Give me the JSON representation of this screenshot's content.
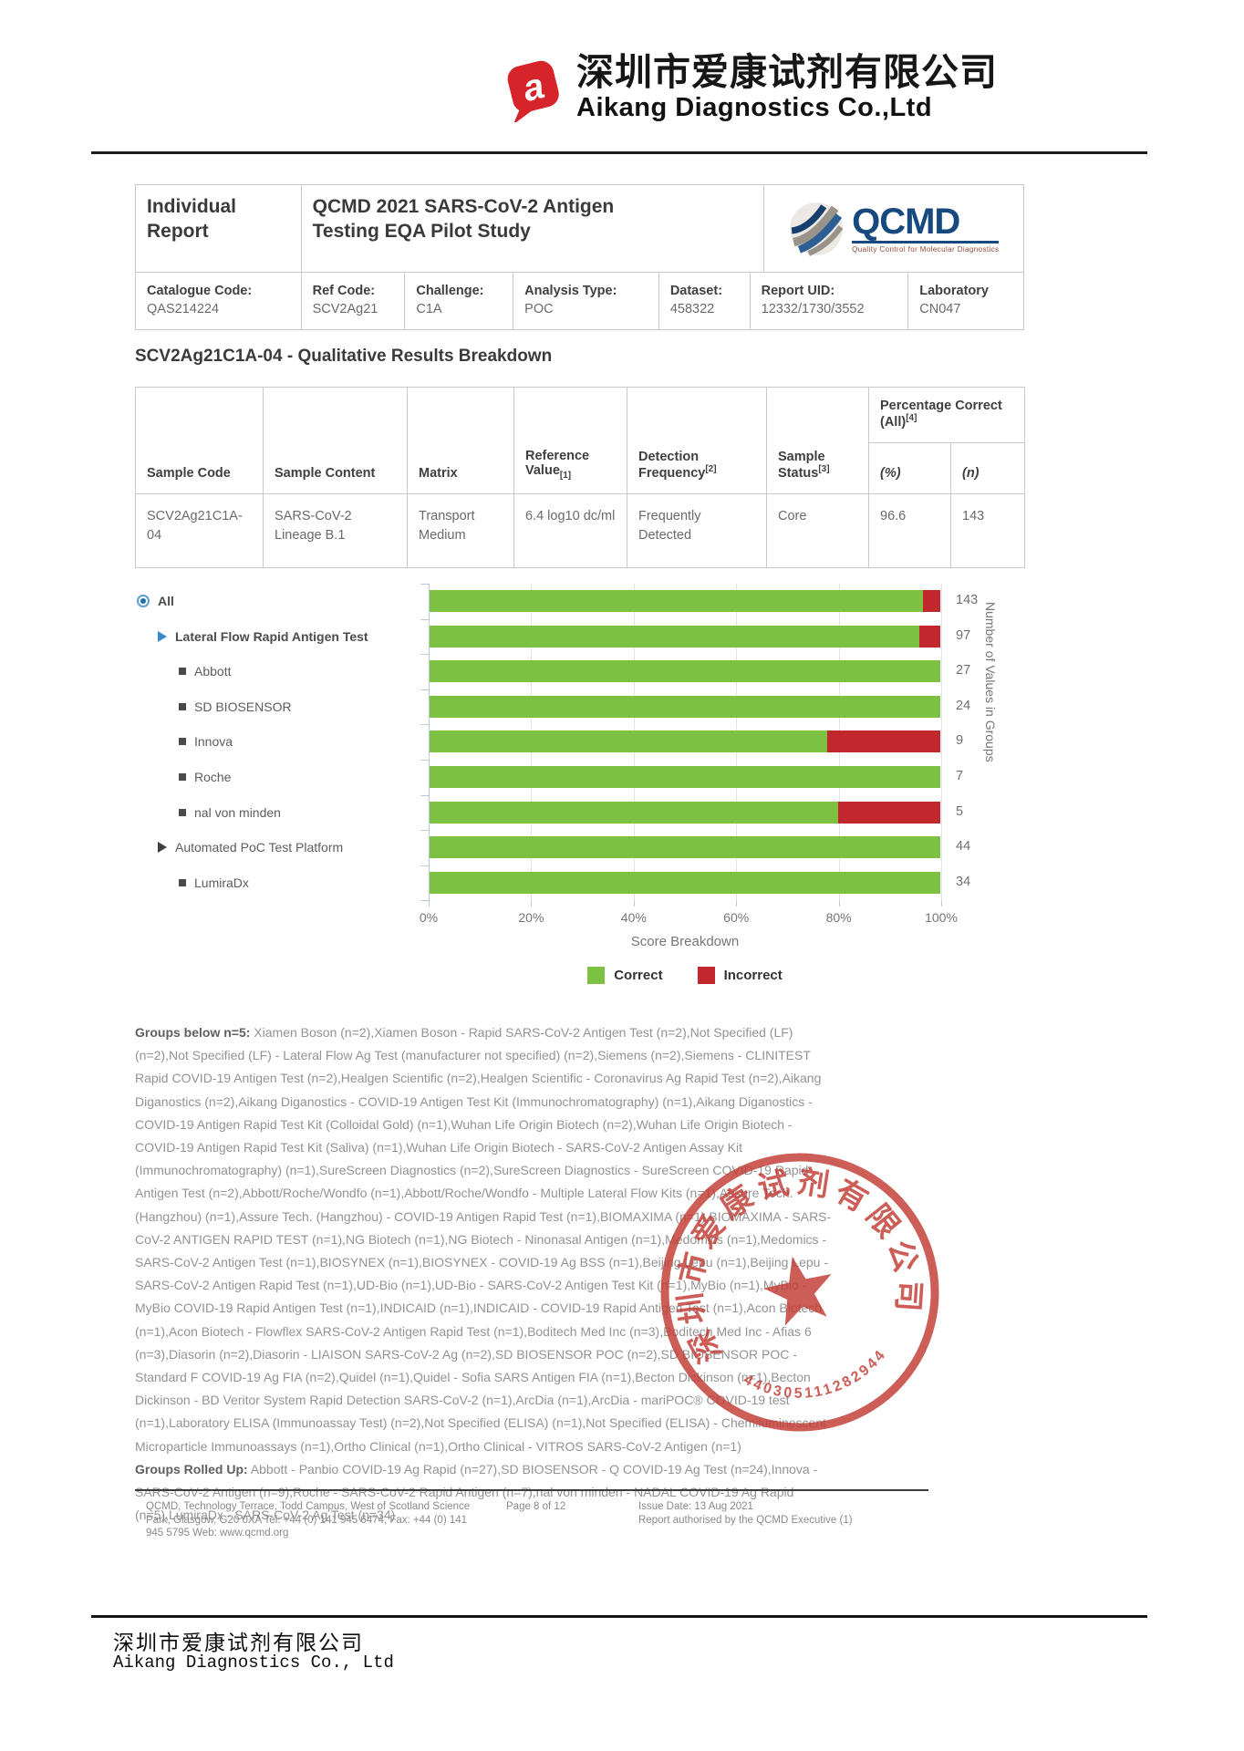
{
  "letterhead": {
    "company_cn": "深圳市爱康试剂有限公司",
    "company_en": "Aikang Diagnostics Co.,Ltd",
    "logo_letter": "a",
    "logo_color": "#d7232a"
  },
  "report_header": {
    "report_type": "Individual Report",
    "study_title": "QCMD 2021 SARS-CoV-2 Antigen Testing EQA Pilot Study",
    "qcmd": {
      "name": "QCMD",
      "tagline": "Quality Control for Molecular Diagnostics"
    },
    "fields": [
      {
        "label": "Catalogue Code:",
        "value": "QAS214224"
      },
      {
        "label": "Ref Code:",
        "value": "SCV2Ag21"
      },
      {
        "label": "Challenge:",
        "value": "C1A"
      },
      {
        "label": "Analysis Type:",
        "value": "POC"
      },
      {
        "label": "Dataset:",
        "value": "458322"
      },
      {
        "label": "Report UID:",
        "value": "12332/1730/3552"
      },
      {
        "label": "Laboratory",
        "value": "CN047"
      }
    ]
  },
  "section_title": "SCV2Ag21C1A-04 - Qualitative Results Breakdown",
  "results_table": {
    "columns": [
      {
        "label": "Sample Code",
        "note": ""
      },
      {
        "label": "Sample Content",
        "note": ""
      },
      {
        "label": "Matrix",
        "note": ""
      },
      {
        "label": "Reference Value",
        "note": "[1]"
      },
      {
        "label": "Detection Frequency",
        "note": "[2]"
      },
      {
        "label": "Sample Status",
        "note": "[3]"
      }
    ],
    "pct_group": {
      "label": "Percentage Correct (All)",
      "note": "[4]",
      "sub_columns": [
        "(%)",
        "(n)"
      ]
    },
    "row": {
      "sample_code": "SCV2Ag21C1A-04",
      "sample_content": "SARS-CoV-2 Lineage B.1",
      "matrix": "Transport Medium",
      "reference_value": "6.4 log10 dc/ml",
      "detection_frequency": "Frequently Detected",
      "sample_status": "Core",
      "pct": "96.6",
      "n": "143"
    }
  },
  "chart_data": {
    "type": "bar",
    "orientation": "horizontal",
    "stacked": true,
    "xlabel": "Score Breakdown",
    "right_axis_label": "Number of Values in Groups",
    "x_ticks": [
      "0%",
      "20%",
      "40%",
      "60%",
      "80%",
      "100%"
    ],
    "xlim": [
      0,
      100
    ],
    "grid": true,
    "legend": [
      {
        "name": "Correct",
        "color": "#7cc142"
      },
      {
        "name": "Incorrect",
        "color": "#c1272d"
      }
    ],
    "categories": [
      "All",
      "Lateral Flow Rapid Antigen Test",
      "Abbott",
      "SD BIOSENSOR",
      "Innova",
      "Roche",
      "nal von minden",
      "Automated PoC Test Platform",
      "LumiraDx"
    ],
    "counts": [
      143,
      97,
      27,
      24,
      9,
      7,
      5,
      44,
      34
    ],
    "series": [
      {
        "name": "Correct",
        "values_pct": [
          96.6,
          95.9,
          100,
          100,
          77.8,
          100,
          80,
          100,
          100
        ]
      },
      {
        "name": "Incorrect",
        "values_pct": [
          3.4,
          4.1,
          0,
          0,
          22.2,
          0,
          20,
          0,
          0
        ]
      }
    ],
    "row_meta": [
      {
        "marker": "radio",
        "indent": 0,
        "bold": true
      },
      {
        "marker": "triangle-blue",
        "indent": 1,
        "bold": true
      },
      {
        "marker": "square",
        "indent": 2,
        "bold": false
      },
      {
        "marker": "square",
        "indent": 2,
        "bold": false
      },
      {
        "marker": "square",
        "indent": 2,
        "bold": false
      },
      {
        "marker": "square",
        "indent": 2,
        "bold": false
      },
      {
        "marker": "square",
        "indent": 2,
        "bold": false
      },
      {
        "marker": "triangle-dark",
        "indent": 1,
        "bold": false
      },
      {
        "marker": "square",
        "indent": 2,
        "bold": false
      }
    ]
  },
  "notes": {
    "below_n5_label": "Groups below n=5:",
    "below_n5_text": " Xiamen Boson (n=2),Xiamen Boson - Rapid SARS-CoV-2 Antigen Test (n=2),Not Specified (LF) (n=2),Not Specified (LF) - Lateral Flow Ag Test (manufacturer not specified) (n=2),Siemens (n=2),Siemens - CLINITEST Rapid COVID-19 Antigen Test (n=2),Healgen Scientific (n=2),Healgen Scientific - Coronavirus Ag Rapid Test (n=2),Aikang Diganostics (n=2),Aikang Diganostics - COVID-19 Antigen Test Kit (Immunochromatography) (n=1),Aikang Diganostics - COVID-19 Antigen Rapid Test Kit (Colloidal Gold) (n=1),Wuhan Life Origin Biotech (n=2),Wuhan Life Origin Biotech - COVID-19 Antigen Rapid Test Kit (Saliva) (n=1),Wuhan Life Origin Biotech - SARS-CoV-2 Antigen Assay Kit (Immunochromatography) (n=1),SureScreen Diagnostics (n=2),SureScreen Diagnostics - SureScreen COVID-19 Rapid Antigen Test (n=2),Abbott/Roche/Wondfo (n=1),Abbott/Roche/Wondfo - Multiple Lateral Flow Kits (n=1),Assure Tech. (Hangzhou) (n=1),Assure Tech. (Hangzhou) - COVID-19 Antigen Rapid Test (n=1),BIOMAXIMA (n=1),BIOMAXIMA - SARS-CoV-2 ANTIGEN RAPID TEST (n=1),NG Biotech (n=1),NG Biotech - Ninonasal Antigen (n=1),Medomics (n=1),Medomics - SARS-CoV-2 Antigen Test (n=1),BIOSYNEX (n=1),BIOSYNEX - COVID-19 Ag BSS (n=1),Beijing Lepu (n=1),Beijing Lepu - SARS-CoV-2 Antigen Rapid Test (n=1),UD-Bio (n=1),UD-Bio - SARS-CoV-2 Antigen Test Kit (n=1),MyBio (n=1),MyBio - MyBio COVID-19 Rapid Antigen Test (n=1),INDICAID (n=1),INDICAID - COVID-19 Rapid Antigen Test (n=1),Acon Biotech (n=1),Acon Biotech - Flowflex SARS-CoV-2 Antigen Rapid Test (n=1),Boditech Med Inc (n=3),Boditech Med Inc - Afias 6 (n=3),Diasorin (n=2),Diasorin - LIAISON SARS-CoV-2 Ag (n=2),SD BIOSENSOR POC (n=2),SD BIOSENSOR POC - Standard F COVID-19 Ag FIA (n=2),Quidel (n=1),Quidel - Sofia SARS Antigen FIA (n=1),Becton Dickinson (n=1),Becton Dickinson - BD Veritor System Rapid Detection SARS-CoV-2 (n=1),ArcDia (n=1),ArcDia - mariPOC® COVID-19 test (n=1),Laboratory ELISA (Immunoassay Test) (n=2),Not Specified (ELISA) (n=1),Not Specified (ELISA) - Chemiluminescent Microparticle Immunoassays (n=1),Ortho Clinical (n=1),Ortho Clinical - VITROS SARS-CoV-2 Antigen (n=1)",
    "rolled_up_label": "Groups Rolled Up:",
    "rolled_up_text": " Abbott - Panbio COVID-19 Ag Rapid (n=27),SD BIOSENSOR - Q COVID-19 Ag Test (n=24),Innova - SARS-CoV-2 Antigen (n=9),Roche - SARS-CoV-2 Rapid Antigen (n=7),nal von minden - NADAL COVID-19 Ag Rapid (n=5),LumiraDx - SARS-CoV-2 Ag Test (n=34)"
  },
  "stamp": {
    "ring_text": "深圳市爱康试剂有限公司",
    "serial": "440305111282944",
    "color": "#c23b33"
  },
  "footer": {
    "address_line1": "QCMD, Technology Terrace, Todd Campus, West of Scotland Science",
    "address_line2": "Park, Glasgow, G20 0XA Tel: +44 (0) 141 945 6474, Fax: +44 (0) 141",
    "address_line3": "945 5795 Web: www.qcmd.org",
    "page": "Page 8 of 12",
    "issue_date": "Issue Date: 13 Aug 2021",
    "authorised": "Report authorised by the QCMD Executive (1)"
  },
  "bottom": {
    "company_cn": "深圳市爱康试剂有限公司",
    "company_en": "Aikang Diagnostics Co., Ltd"
  }
}
